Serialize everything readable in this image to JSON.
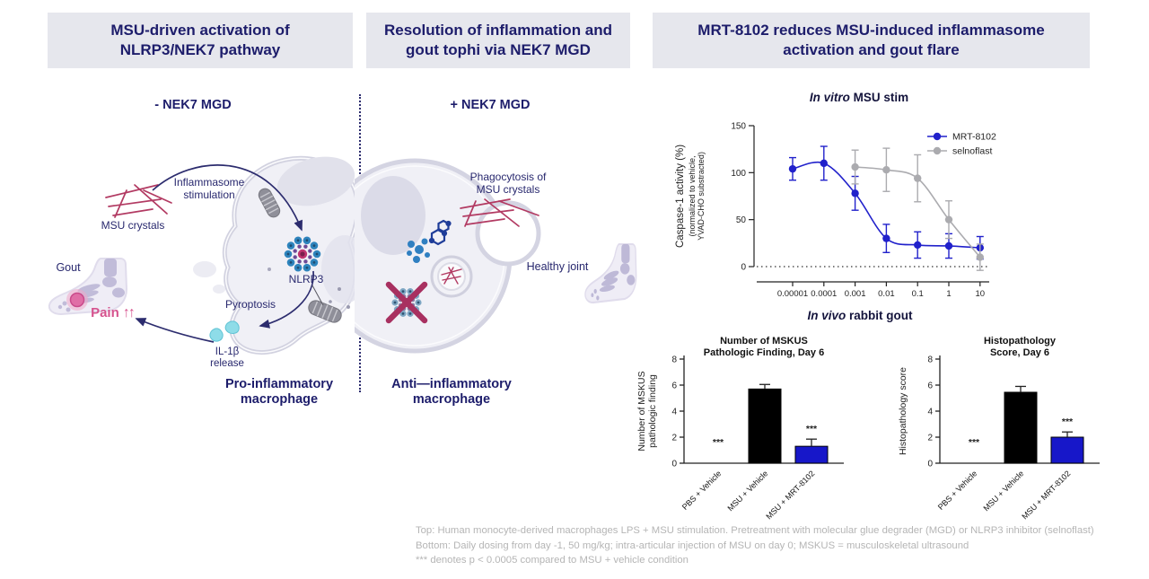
{
  "headers": {
    "panel1": "MSU-driven activation of\nNLRP3/NEK7 pathway",
    "panel2": "Resolution of inflammation and\ngout tophi via NEK7 MGD",
    "panel3": "MRT-8102 reduces MSU-induced inflammasome\nactivation and gout flare"
  },
  "left_panel": {
    "condition": "- NEK7 MGD",
    "msu_crystals": "MSU crystals",
    "inflammasome_stimulation": "Inflammasome\nstimulation",
    "gout": "Gout",
    "pain": "Pain",
    "pain_arrows": "↑↑",
    "nlrp3": "NLRP3",
    "pyroptosis": "Pyroptosis",
    "il1b_release": "IL-1β\nrelease",
    "macrophage": "Pro-inflammatory\nmacrophage"
  },
  "middle_panel": {
    "condition": "+ NEK7 MGD",
    "phagocytosis": "Phagocytosis of\nMSU crystals",
    "healthy_joint": "Healthy joint",
    "macrophage": "Anti—inflammatory\nmacrophage"
  },
  "right_panel": {
    "invitro_title_italic": "In vitro",
    "invitro_title_rest": " MSU stim",
    "invivo_title_italic": "In vivo",
    "invivo_title_rest": " rabbit gout"
  },
  "footnote": {
    "line1": "Top: Human monocyte-derived macrophages LPS + MSU stimulation. Pretreatment with molecular glue degrader (MGD) or NLRP3 inhibitor (selnoflast)",
    "line2": "Bottom: Daily dosing from day -1, 50 mg/kg; intra-articular injection of MSU on day 0; MSKUS = musculoskeletal ultrasound",
    "line3": "*** denotes p < 0.0005 compared to MSU + vehicle condition"
  },
  "chart_data": [
    {
      "type": "line",
      "title": "In vitro MSU stim",
      "xscale": "log",
      "x_ticks": [
        "0.00001",
        "0.0001",
        "0.001",
        "0.01",
        "0.1",
        "1",
        "10"
      ],
      "y_ticks": [
        0,
        50,
        100,
        150
      ],
      "ylim": [
        0,
        150
      ],
      "ylabel": "Caspase-1 activity (%)",
      "ylabel_sub": [
        "(normalized to vehicle,",
        "YVAD-CHO substracted)"
      ],
      "baseline_dotted": 0,
      "legend_position": "top-right",
      "series": [
        {
          "name": "MRT-8102",
          "color": "#2121cb",
          "x_idx": [
            0,
            1,
            2,
            3,
            4,
            5,
            6
          ],
          "values": [
            104,
            110,
            78,
            30,
            23,
            22,
            20
          ],
          "errors": [
            12,
            18,
            18,
            15,
            14,
            13,
            12
          ]
        },
        {
          "name": "selnoflast",
          "color": "#ababaf",
          "x_idx": [
            2,
            3,
            4,
            5,
            6
          ],
          "values": [
            106,
            103,
            94,
            50,
            10
          ],
          "errors": [
            18,
            23,
            25,
            20,
            14
          ]
        }
      ]
    },
    {
      "type": "bar",
      "title_lines": [
        "Number of MSKUS",
        "Pathologic Finding,  Day 6"
      ],
      "ylabel_lines": [
        "Number of MSKUS",
        "pathologic finding"
      ],
      "ylim": [
        0,
        8
      ],
      "y_ticks": [
        0,
        2,
        4,
        6,
        8
      ],
      "categories": [
        "PBS + Vehicle",
        "MSU + Vehicle",
        "MSU + MRT-8102"
      ],
      "values": [
        0,
        5.7,
        1.3
      ],
      "errors": [
        0,
        0.35,
        0.55
      ],
      "bar_colors": [
        "#000000",
        "#000000",
        "#1717c9"
      ],
      "significance": [
        "***",
        "",
        "***"
      ]
    },
    {
      "type": "bar",
      "title_lines": [
        "Histopathology",
        "Score, Day 6"
      ],
      "ylabel_lines": [
        "Histopathology score"
      ],
      "ylim": [
        0,
        8
      ],
      "y_ticks": [
        0,
        2,
        4,
        6,
        8
      ],
      "categories": [
        "PBS + Vehicle",
        "MSU + Vehicle",
        "MSU + MRT-8102"
      ],
      "values": [
        0,
        5.45,
        2.0
      ],
      "errors": [
        0,
        0.45,
        0.4
      ],
      "bar_colors": [
        "#000000",
        "#000000",
        "#1717c9"
      ],
      "significance": [
        "***",
        "",
        "***"
      ]
    }
  ],
  "colors": {
    "accent_navy": "#1d1d6b",
    "header_bg": "#e6e7ed",
    "crystal_crimson": "#b23a62",
    "pain_pink": "#d6538e",
    "mrt_blue": "#2121cb",
    "selnoflast_gray": "#ababaf",
    "bar_blue": "#1717c9",
    "footnote_gray": "#b5b5b5"
  }
}
